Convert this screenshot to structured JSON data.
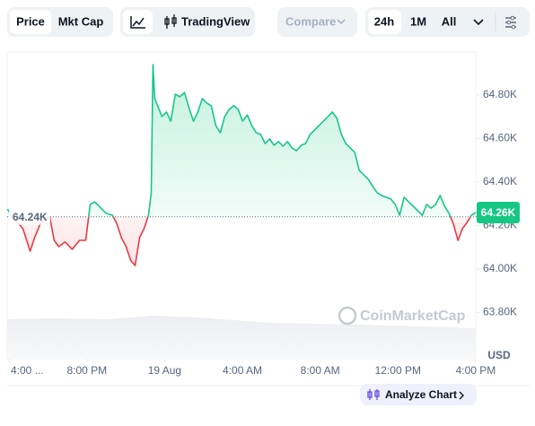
{
  "ui": {
    "price_tab": "Price",
    "mktcap_tab": "Mkt Cap",
    "tradingview": "TradingView",
    "compare": "Compare",
    "range_24h": "24h",
    "range_1m": "1M",
    "range_all": "All",
    "currency": "USD",
    "watermark": "CoinMarketCap",
    "analyze": "Analyze Chart"
  },
  "chart_data": {
    "type": "line",
    "color_up": "#16c784",
    "color_down": "#ea3943",
    "baseline": {
      "value": 64240,
      "label": "64.24K"
    },
    "last_price": {
      "value": 64260,
      "label": "64.26K"
    },
    "xlim": [
      -8.1,
      16.05
    ],
    "ylim": [
      63620,
      65000
    ],
    "xticks": [
      {
        "value": -8,
        "label": "4:00 ..."
      },
      {
        "value": -4,
        "label": "8:00 PM"
      },
      {
        "value": 0,
        "label": "19 Aug"
      },
      {
        "value": 4,
        "label": "4:00 AM"
      },
      {
        "value": 8,
        "label": "8:00 AM"
      },
      {
        "value": 12,
        "label": "12:00 PM"
      },
      {
        "value": 16,
        "label": "4:00 PM"
      }
    ],
    "yticks": [
      {
        "value": 63800,
        "label": "63.80K"
      },
      {
        "value": 64000,
        "label": "64.00K"
      },
      {
        "value": 64200,
        "label": "64.20K"
      },
      {
        "value": 64400,
        "label": "64.40K"
      },
      {
        "value": 64600,
        "label": "64.60K"
      },
      {
        "value": 64800,
        "label": "64.80K"
      }
    ],
    "x": [
      -8.08,
      -7.89,
      -7.29,
      -6.92,
      -6.69,
      -6.37,
      -5.91,
      -5.68,
      -5.45,
      -5.12,
      -4.75,
      -4.38,
      -4.06,
      -3.83,
      -3.6,
      -3.28,
      -3.0,
      -2.68,
      -2.45,
      -2.22,
      -1.98,
      -1.75,
      -1.52,
      -1.29,
      -1.06,
      -0.83,
      -0.69,
      -0.6,
      -0.51,
      -0.32,
      -0.14,
      0.09,
      0.32,
      0.55,
      0.78,
      1.02,
      1.25,
      1.48,
      1.71,
      1.94,
      2.17,
      2.4,
      2.63,
      2.86,
      3.09,
      3.32,
      3.55,
      3.78,
      4.01,
      4.25,
      4.48,
      4.71,
      4.94,
      5.17,
      5.4,
      5.63,
      5.86,
      6.09,
      6.32,
      6.55,
      6.78,
      7.02,
      7.25,
      7.48,
      7.71,
      7.94,
      8.17,
      8.4,
      8.63,
      8.86,
      9.09,
      9.32,
      9.55,
      9.78,
      10.01,
      10.24,
      10.48,
      10.71,
      10.94,
      11.17,
      11.4,
      11.63,
      11.86,
      12.09,
      12.32,
      12.55,
      12.78,
      13.02,
      13.25,
      13.48,
      13.71,
      13.94,
      14.17,
      14.4,
      14.63,
      14.86,
      15.09,
      15.32,
      15.55,
      15.78,
      16.01
    ],
    "series": [
      {
        "name": "Price",
        "values": [
          64276,
          64247,
          64186,
          64082,
          64144,
          64214,
          64239,
          64132,
          64103,
          64124,
          64091,
          64132,
          64132,
          64297,
          64309,
          64280,
          64256,
          64247,
          64206,
          64144,
          64103,
          64041,
          64016,
          64144,
          64186,
          64247,
          64350,
          64940,
          64784,
          64742,
          64701,
          64722,
          64680,
          64804,
          64792,
          64812,
          64742,
          64680,
          64722,
          64784,
          64763,
          64751,
          64660,
          64627,
          64701,
          64734,
          64751,
          64734,
          64680,
          64709,
          64660,
          64627,
          64619,
          64577,
          64598,
          64569,
          64586,
          64565,
          64586,
          64557,
          64544,
          64569,
          64577,
          64619,
          64639,
          64660,
          64680,
          64701,
          64722,
          64693,
          64619,
          64577,
          64557,
          64536,
          64454,
          64433,
          64412,
          64379,
          64350,
          64338,
          64330,
          64322,
          64297,
          64247,
          64330,
          64309,
          64289,
          64268,
          64247,
          64297,
          64280,
          64297,
          64338,
          64289,
          64256,
          64206,
          64132,
          64186,
          64214,
          64247,
          64260
        ]
      }
    ]
  }
}
